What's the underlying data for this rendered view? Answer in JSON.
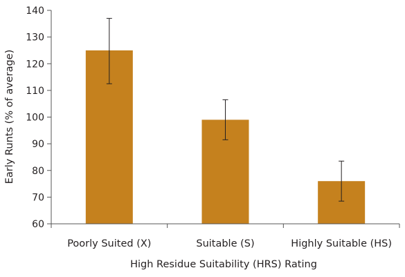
{
  "chart_data": {
    "type": "bar",
    "title": "",
    "xlabel": "High Residue Suitability (HRS) Rating",
    "ylabel": "Early Runts (% of average)",
    "categories": [
      "Poorly Suited (X)",
      "Suitable (S)",
      "Highly Suitable (HS)"
    ],
    "values": [
      125,
      99,
      76
    ],
    "error_low": [
      112.5,
      91.5,
      68.5
    ],
    "error_high": [
      137,
      106.5,
      83.5
    ],
    "ylim": [
      60,
      140
    ],
    "yticks": [
      60,
      70,
      80,
      90,
      100,
      110,
      120,
      130,
      140
    ],
    "grid": false,
    "legend": "none",
    "colors": {
      "bar": "#c5811e",
      "axis": "#555555",
      "error_bar": "#231f20"
    }
  }
}
